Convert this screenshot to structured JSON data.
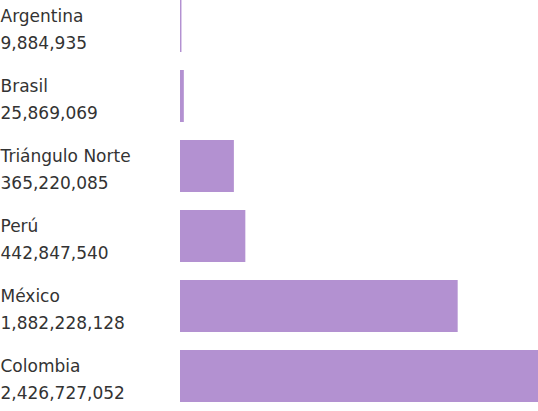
{
  "chart_data": {
    "type": "bar",
    "orientation": "horizontal",
    "categories": [
      "Argentina",
      "Brasil",
      "Triángulo Norte",
      "Perú",
      "México",
      "Colombia"
    ],
    "values": [
      9884935,
      25869069,
      365220085,
      442847540,
      1882228128,
      2426727052
    ],
    "value_labels": [
      "9,884,935",
      "25,869,069",
      "365,220,085",
      "442,847,540",
      "1,882,228,128",
      "2,426,727,052"
    ],
    "data_labels": true,
    "color": "#b391d1",
    "xlim": [
      0,
      2426727052
    ],
    "tick_labels": "y",
    "grid": false
  }
}
